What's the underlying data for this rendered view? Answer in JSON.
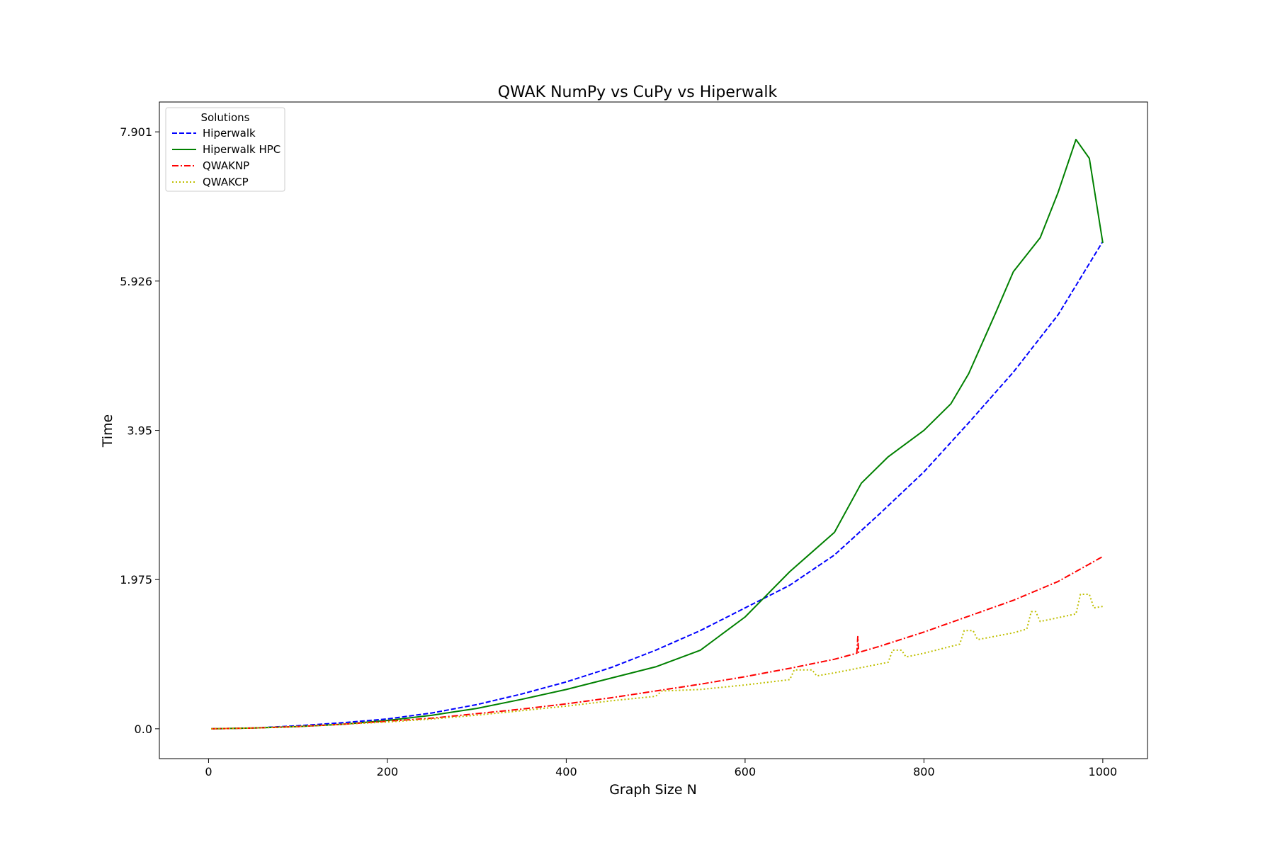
{
  "chart_data": {
    "type": "line",
    "title": "QWAK NumPy vs CuPy vs Hiperwalk",
    "xlabel": "Graph Size N",
    "ylabel": "Time",
    "xlim": [
      -55,
      1050
    ],
    "ylim": [
      -0.395,
      8.296
    ],
    "xticks": [
      0,
      200,
      400,
      600,
      800,
      1000
    ],
    "xtick_labels": [
      "0",
      "200",
      "400",
      "600",
      "800",
      "1000"
    ],
    "yticks": [
      0.0,
      1.975,
      3.95,
      5.926,
      7.901
    ],
    "ytick_labels": [
      "0.0",
      "1.975",
      "3.95",
      "5.926",
      "7.901"
    ],
    "grid": false,
    "legend": {
      "title": "Solutions",
      "placement": "upper-left"
    },
    "series": [
      {
        "name": "Hiperwalk",
        "color": "#0000ff",
        "style": "dashed",
        "x": [
          3,
          50,
          100,
          150,
          200,
          250,
          300,
          350,
          400,
          450,
          500,
          550,
          600,
          650,
          700,
          750,
          800,
          850,
          900,
          950,
          1000
        ],
        "y": [
          0.0,
          0.01,
          0.04,
          0.08,
          0.13,
          0.21,
          0.32,
          0.46,
          0.62,
          0.81,
          1.04,
          1.3,
          1.6,
          1.9,
          2.3,
          2.84,
          3.4,
          4.05,
          4.72,
          5.48,
          6.45
        ]
      },
      {
        "name": "Hiperwalk HPC",
        "color": "#008000",
        "style": "solid",
        "x": [
          3,
          50,
          100,
          150,
          200,
          250,
          300,
          350,
          400,
          450,
          500,
          550,
          600,
          620,
          650,
          700,
          730,
          760,
          800,
          830,
          850,
          880,
          900,
          930,
          950,
          970,
          985,
          1000
        ],
        "y": [
          0.0,
          0.01,
          0.03,
          0.06,
          0.11,
          0.18,
          0.27,
          0.39,
          0.52,
          0.67,
          0.82,
          1.04,
          1.48,
          1.72,
          2.08,
          2.6,
          3.25,
          3.6,
          3.95,
          4.3,
          4.7,
          5.5,
          6.05,
          6.5,
          7.1,
          7.8,
          7.55,
          6.43
        ]
      },
      {
        "name": "QWAKNP",
        "color": "#ff0000",
        "style": "dashdot",
        "x": [
          3,
          50,
          100,
          150,
          200,
          250,
          300,
          350,
          400,
          450,
          500,
          550,
          600,
          650,
          700,
          725,
          726,
          727,
          750,
          800,
          850,
          900,
          950,
          1000
        ],
        "y": [
          0.0,
          0.01,
          0.03,
          0.06,
          0.1,
          0.14,
          0.2,
          0.26,
          0.33,
          0.41,
          0.5,
          0.59,
          0.69,
          0.8,
          0.92,
          1.0,
          1.22,
          1.01,
          1.09,
          1.28,
          1.49,
          1.7,
          1.95,
          2.28
        ]
      },
      {
        "name": "QWAKCP",
        "color": "#bfbf00",
        "style": "dotted",
        "x": [
          3,
          50,
          100,
          150,
          200,
          250,
          300,
          350,
          400,
          450,
          500,
          507,
          550,
          600,
          650,
          655,
          675,
          680,
          700,
          760,
          765,
          775,
          780,
          800,
          840,
          845,
          855,
          860,
          900,
          915,
          920,
          925,
          930,
          970,
          975,
          985,
          990,
          1000
        ],
        "y": [
          0.0,
          0.01,
          0.03,
          0.06,
          0.09,
          0.13,
          0.18,
          0.24,
          0.3,
          0.37,
          0.43,
          0.5,
          0.52,
          0.58,
          0.65,
          0.78,
          0.78,
          0.7,
          0.74,
          0.88,
          1.04,
          1.04,
          0.95,
          1.0,
          1.12,
          1.3,
          1.3,
          1.18,
          1.27,
          1.32,
          1.55,
          1.55,
          1.42,
          1.52,
          1.78,
          1.78,
          1.6,
          1.62
        ]
      }
    ]
  }
}
